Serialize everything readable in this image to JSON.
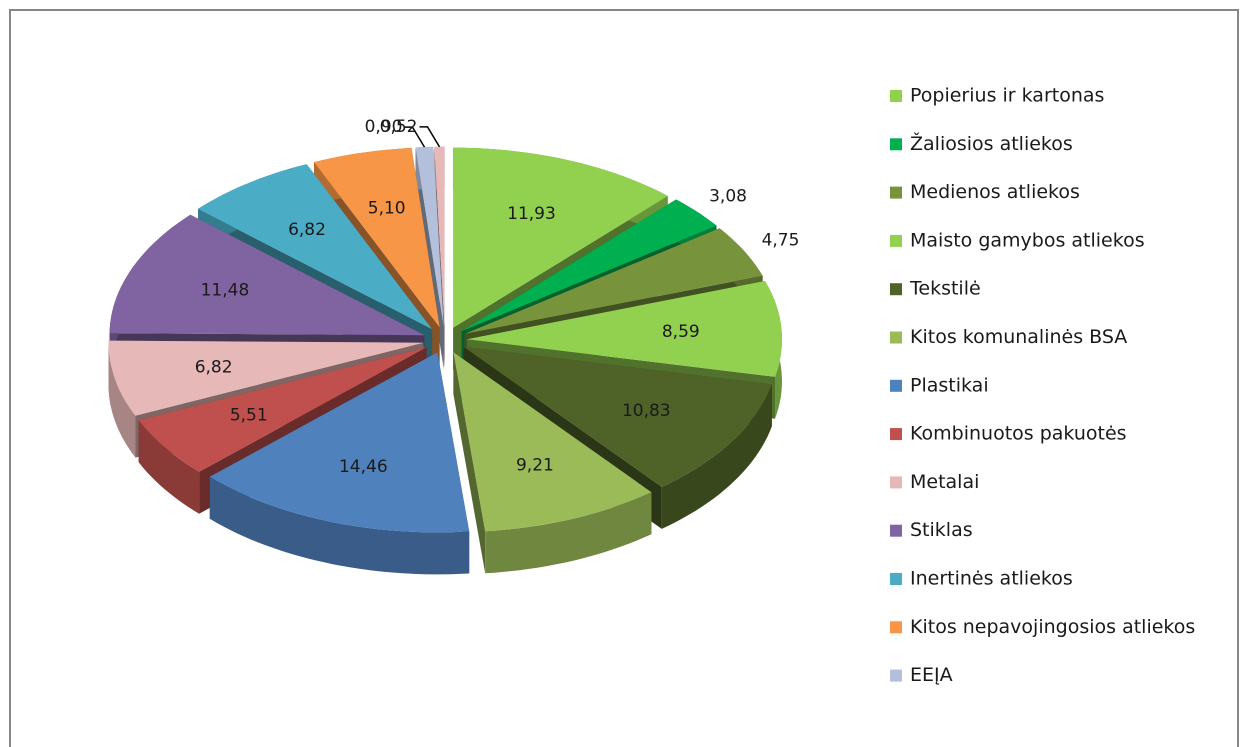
{
  "chart_data": {
    "type": "pie3d",
    "categories": [
      "Popierius ir kartonas",
      "Žaliosios atliekos",
      "Medienos atliekos",
      "Maisto gamybos atliekos",
      "Tekstilė",
      "Kitos komunalinės BSA",
      "Plastikai",
      "Kombinuotos pakuotės",
      "Metalai",
      "Stiklas",
      "Inertinės atliekos",
      "Kitos nepavojingosios atliekos",
      "EEĮA",
      null
    ],
    "values": [
      11.93,
      3.08,
      4.75,
      8.59,
      10.83,
      9.21,
      14.46,
      5.51,
      6.82,
      11.48,
      6.82,
      5.1,
      0.9,
      0.52
    ],
    "value_labels": [
      "11,93",
      "3,08",
      "4,75",
      "8,59",
      "10,83",
      "9,21",
      "14,46",
      "5,51",
      "6,82",
      "11,48",
      "6,82",
      "5,10",
      "0,90",
      "0,52"
    ],
    "colors": [
      "#92d050",
      "#00b050",
      "#77933c",
      "#92d050",
      "#4f6228",
      "#9bbb59",
      "#4f81bd",
      "#c0504d",
      "#e6b9b8",
      "#8064a2",
      "#4bacc6",
      "#f79646",
      "#b3c0dc",
      "#e6b9b8"
    ],
    "legend": "right"
  }
}
